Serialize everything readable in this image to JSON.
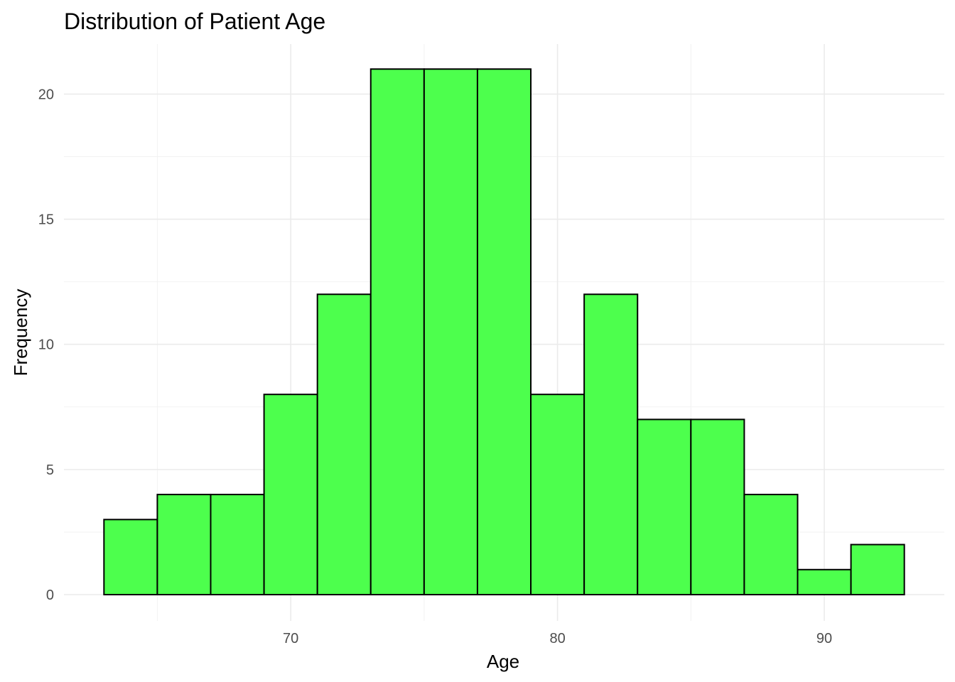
{
  "chart_data": {
    "type": "bar",
    "title": "Distribution of Patient Age",
    "xlabel": "Age",
    "ylabel": "Frequency",
    "bin_width": 2,
    "bins": [
      {
        "start": 63,
        "end": 65,
        "count": 3
      },
      {
        "start": 65,
        "end": 67,
        "count": 4
      },
      {
        "start": 67,
        "end": 69,
        "count": 4
      },
      {
        "start": 69,
        "end": 71,
        "count": 8
      },
      {
        "start": 71,
        "end": 73,
        "count": 12
      },
      {
        "start": 73,
        "end": 75,
        "count": 21
      },
      {
        "start": 75,
        "end": 77,
        "count": 21
      },
      {
        "start": 77,
        "end": 79,
        "count": 21
      },
      {
        "start": 79,
        "end": 81,
        "count": 8
      },
      {
        "start": 81,
        "end": 83,
        "count": 12
      },
      {
        "start": 83,
        "end": 85,
        "count": 7
      },
      {
        "start": 85,
        "end": 87,
        "count": 7
      },
      {
        "start": 87,
        "end": 89,
        "count": 4
      },
      {
        "start": 89,
        "end": 91,
        "count": 1
      },
      {
        "start": 91,
        "end": 93,
        "count": 2
      }
    ],
    "xlim": [
      61.5,
      94.5
    ],
    "ylim": [
      -1.05,
      22
    ],
    "x_ticks": [
      70,
      80,
      90
    ],
    "y_ticks": [
      0,
      5,
      10,
      15,
      20
    ],
    "x_minor_ticks": [
      65,
      75,
      85
    ],
    "y_minor_ticks": [
      2.5,
      7.5,
      12.5,
      17.5
    ],
    "grid": true,
    "legend": "none",
    "colors": {
      "bar_fill": "#4dff4d",
      "bar_border": "#000000",
      "grid_major": "#ebebeb",
      "grid_minor": "#f2f2f2"
    }
  }
}
